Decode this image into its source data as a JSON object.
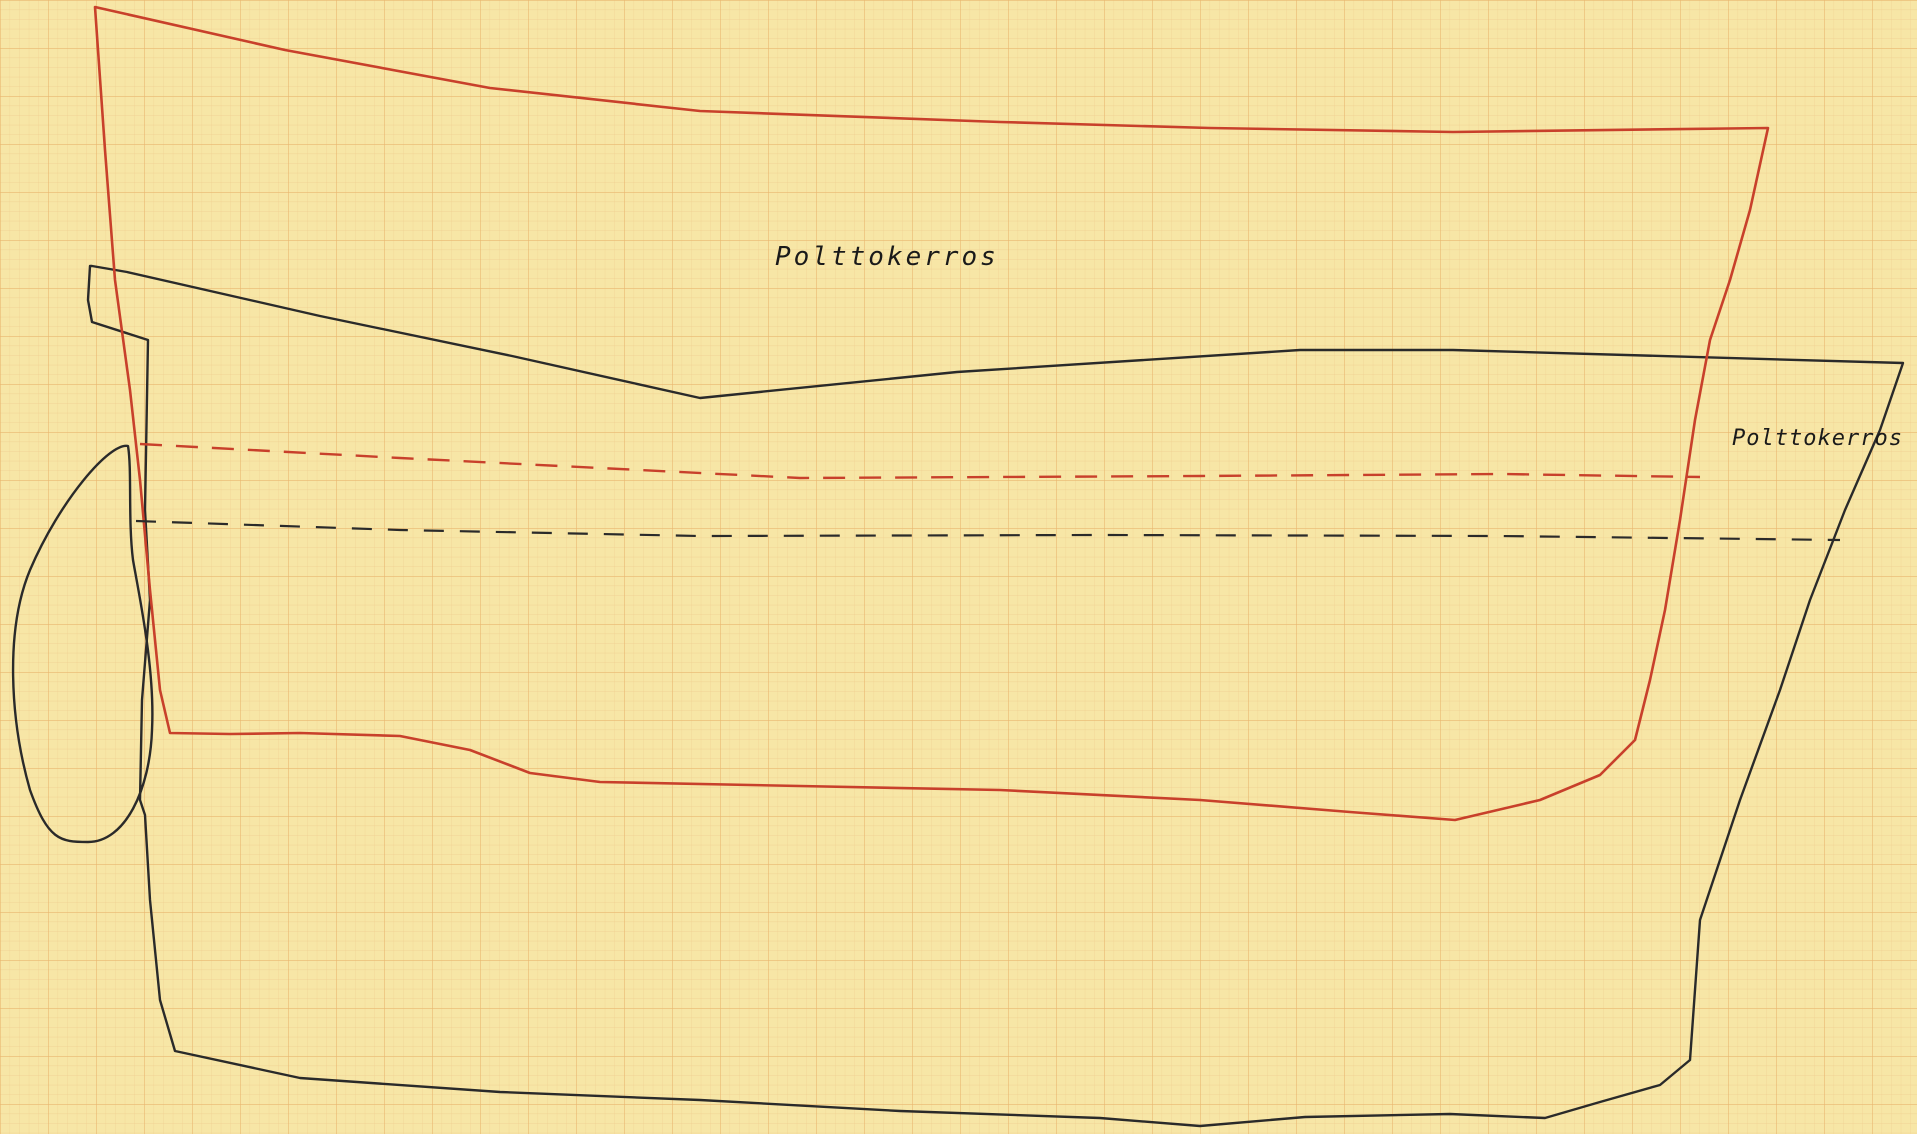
{
  "labels": {
    "upper_layer": "Polttokerros",
    "lower_layer": "Polttokerros"
  },
  "colors": {
    "paper": "#f7e6a6",
    "grid_minor": "#f0c987",
    "grid_major": "#e8b46a",
    "red_outline": "#c8402b",
    "black_outline": "#2a2a2a"
  }
}
